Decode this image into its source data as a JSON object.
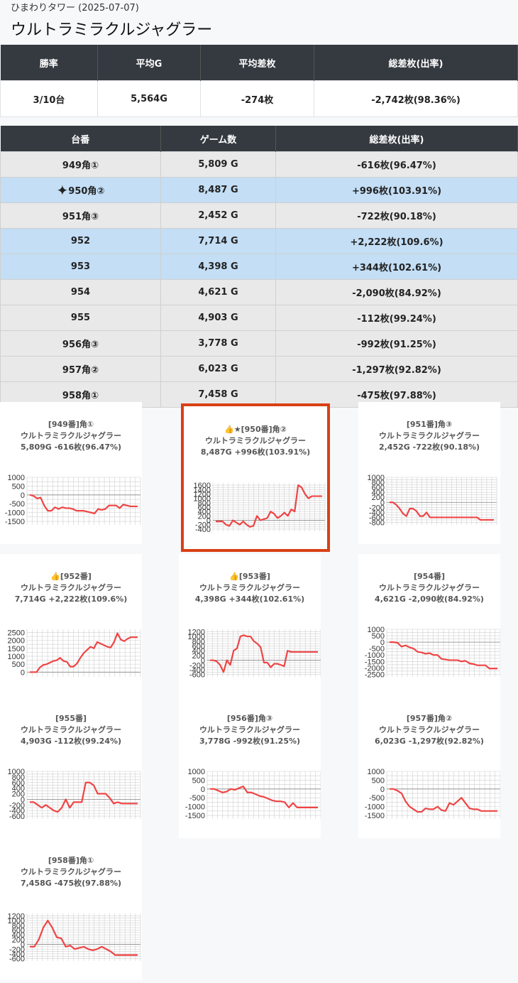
{
  "header": {
    "store": "ひまわりタワー (2025-07-07)",
    "title": "ウルトラミラクルジャグラー"
  },
  "summary": {
    "headers": [
      "勝率",
      "平均G",
      "平均差枚",
      "総差枚(出率)"
    ],
    "values": [
      "3/10台",
      "5,564G",
      "-274枚",
      "-2,742枚(98.36%)"
    ]
  },
  "machines": {
    "headers": [
      "台番",
      "ゲーム数",
      "総差枚(出率)"
    ],
    "rows": [
      {
        "num": "949角①",
        "games": "5,809 G",
        "diff": "-616枚(96.47%)",
        "hl": false,
        "icon": ""
      },
      {
        "num": "950角②",
        "games": "8,487 G",
        "diff": "+996枚(103.91%)",
        "hl": true,
        "icon": "✦"
      },
      {
        "num": "951角③",
        "games": "2,452 G",
        "diff": "-722枚(90.18%)",
        "hl": false,
        "icon": ""
      },
      {
        "num": "952",
        "games": "7,714 G",
        "diff": "+2,222枚(109.6%)",
        "hl": true,
        "icon": ""
      },
      {
        "num": "953",
        "games": "4,398 G",
        "diff": "+344枚(102.61%)",
        "hl": true,
        "icon": ""
      },
      {
        "num": "954",
        "games": "4,621 G",
        "diff": "-2,090枚(84.92%)",
        "hl": false,
        "icon": ""
      },
      {
        "num": "955",
        "games": "4,903 G",
        "diff": "-112枚(99.24%)",
        "hl": false,
        "icon": ""
      },
      {
        "num": "956角③",
        "games": "3,778 G",
        "diff": "-992枚(91.25%)",
        "hl": false,
        "icon": ""
      },
      {
        "num": "957角②",
        "games": "6,023 G",
        "diff": "-1,297枚(92.82%)",
        "hl": false,
        "icon": ""
      },
      {
        "num": "958角①",
        "games": "7,458 G",
        "diff": "-475枚(97.88%)",
        "hl": false,
        "icon": ""
      }
    ]
  },
  "colors": {
    "line": "#ef4444",
    "grid": "#cfcfcf",
    "header_bg": "#343a40",
    "highlight": "#c3def5",
    "selected_border": "#d94015"
  },
  "chart_data": [
    {
      "type": "line",
      "title": [
        "[949番]角①",
        "ウルトラミラクルジャグラー",
        "5,809G -616枚(96.47%)"
      ],
      "ylim": [
        -1700,
        1000
      ],
      "yticks": [
        1000,
        500,
        0,
        -500,
        -1000,
        -1500
      ],
      "grid": true,
      "values": [
        0,
        -50,
        -200,
        -150,
        -600,
        -900,
        -900,
        -700,
        -800,
        -700,
        -750,
        -750,
        -800,
        -900,
        -900,
        -900,
        -950,
        -1000,
        -1050,
        -800,
        -850,
        -800,
        -600,
        -600,
        -600,
        -750,
        -550,
        -600,
        -650,
        -650,
        -650
      ]
    },
    {
      "type": "line",
      "title": [
        "👍★[950番]角②",
        "ウルトラミラクルジャグラー",
        "8,487G +996枚(103.91%)"
      ],
      "ylim": [
        -500,
        1700
      ],
      "yticks": [
        1600,
        1400,
        1200,
        1000,
        800,
        600,
        400,
        200,
        0,
        -200,
        -400
      ],
      "grid": true,
      "values": [
        -50,
        -50,
        -50,
        -200,
        -250,
        0,
        -100,
        -200,
        -50,
        -200,
        -300,
        -250,
        200,
        0,
        50,
        100,
        400,
        300,
        100,
        200,
        350,
        200,
        500,
        400,
        1600,
        1500,
        1200,
        1000,
        1100,
        1100,
        1100,
        1100
      ]
    },
    {
      "type": "line",
      "title": [
        "[951番]角③",
        "ウルトラミラクルジャグラー",
        "2,452G -722枚(90.18%)"
      ],
      "ylim": [
        -900,
        1000
      ],
      "yticks": [
        1000,
        800,
        600,
        400,
        200,
        0,
        -200,
        -400,
        -600,
        -800
      ],
      "grid": true,
      "values": [
        0,
        0,
        -100,
        -250,
        -450,
        -550,
        -250,
        -250,
        -350,
        -550,
        -550,
        -400,
        -600,
        -600,
        -600,
        -600,
        -600,
        -600,
        -600,
        -600,
        -600,
        -600,
        -600,
        -600,
        -600,
        -600,
        -600,
        -700,
        -700,
        -700,
        -700,
        -700
      ]
    },
    {
      "type": "line",
      "title": [
        "👍[952番]",
        "ウルトラミラクルジャグラー",
        "7,714G +2,222枚(109.6%)"
      ],
      "ylim": [
        -300,
        2700
      ],
      "yticks": [
        2500,
        2000,
        1500,
        1000,
        500,
        0
      ],
      "grid": true,
      "values": [
        0,
        0,
        0,
        300,
        450,
        500,
        600,
        700,
        750,
        900,
        700,
        650,
        350,
        350,
        550,
        900,
        1200,
        1400,
        1600,
        1500,
        1900,
        1800,
        1700,
        1600,
        1550,
        1900,
        2450,
        2050,
        1950,
        2100,
        2200,
        2200,
        2200
      ]
    },
    {
      "type": "line",
      "title": [
        "👍[953番]",
        "ウルトラミラクルジャグラー",
        "4,398G +344枚(102.61%)"
      ],
      "ylim": [
        -700,
        1300
      ],
      "yticks": [
        1200,
        1000,
        800,
        600,
        400,
        200,
        0,
        -200,
        -400,
        -600
      ],
      "grid": true,
      "values": [
        0,
        0,
        -50,
        -200,
        -500,
        0,
        -200,
        400,
        500,
        1000,
        1050,
        1000,
        1000,
        800,
        700,
        550,
        -100,
        -100,
        -300,
        -150,
        -150,
        -200,
        -250,
        400,
        350,
        350,
        350,
        350,
        350,
        350,
        350,
        350,
        350
      ]
    },
    {
      "type": "line",
      "title": [
        "[954番]",
        "ウルトラミラクルジャグラー",
        "4,621G -2,090枚(84.92%)"
      ],
      "ylim": [
        -2700,
        1000
      ],
      "yticks": [
        1000,
        500,
        0,
        -500,
        -1000,
        -1500,
        -2000,
        -2500
      ],
      "grid": true,
      "values": [
        0,
        0,
        -50,
        -350,
        -250,
        -400,
        -500,
        -750,
        -800,
        -900,
        -850,
        -1000,
        -1000,
        -1300,
        -1350,
        -1400,
        -1400,
        -1400,
        -1500,
        -1450,
        -1650,
        -1700,
        -1800,
        -1800,
        -1800,
        -2050,
        -2050,
        -2050
      ]
    },
    {
      "type": "line",
      "title": [
        "[955番]",
        "ウルトラミラクルジャグラー",
        "4,903G -112枚(99.24%)"
      ],
      "ylim": [
        -700,
        1000
      ],
      "yticks": [
        1000,
        800,
        600,
        400,
        200,
        0,
        -200,
        -400,
        -600
      ],
      "grid": true,
      "values": [
        -100,
        -100,
        -200,
        -300,
        -200,
        -300,
        -400,
        -450,
        -300,
        0,
        -300,
        -100,
        -100,
        -100,
        600,
        600,
        500,
        200,
        200,
        200,
        50,
        -150,
        -100,
        -150,
        -150,
        -150,
        -150,
        -150
      ]
    },
    {
      "type": "line",
      "title": [
        "[956番]角③",
        "ウルトラミラクルジャグラー",
        "3,778G -992枚(91.25%)"
      ],
      "ylim": [
        -1700,
        1000
      ],
      "yticks": [
        1000,
        500,
        0,
        -500,
        -1000,
        -1500
      ],
      "grid": true,
      "values": [
        0,
        0,
        -100,
        -200,
        -150,
        0,
        -50,
        50,
        150,
        -200,
        -200,
        -300,
        -400,
        -450,
        -550,
        -650,
        -700,
        -700,
        -750,
        -1050,
        -800,
        -1050,
        -1050,
        -1050,
        -1050,
        -1050,
        -1050
      ]
    },
    {
      "type": "line",
      "title": [
        "[957番]角②",
        "ウルトラミラクルジャグラー",
        "6,023G -1,297枚(92.82%)"
      ],
      "ylim": [
        -1700,
        1000
      ],
      "yticks": [
        1000,
        500,
        0,
        -500,
        -1000,
        -1500
      ],
      "grid": true,
      "values": [
        0,
        0,
        -100,
        -250,
        -700,
        -1000,
        -1150,
        -1300,
        -1300,
        -1100,
        -1150,
        -1150,
        -1000,
        -1200,
        -1250,
        -800,
        -900,
        -700,
        -500,
        -800,
        -1100,
        -1150,
        -1150,
        -1250,
        -1250,
        -1250,
        -1250,
        -1250
      ]
    },
    {
      "type": "line",
      "title": [
        "[958番]角①",
        "ウルトラミラクルジャグラー",
        "7,458G -475枚(97.88%)"
      ],
      "ylim": [
        -700,
        1300
      ],
      "yticks": [
        1200,
        1000,
        800,
        600,
        400,
        200,
        0,
        -200,
        -400,
        -600
      ],
      "grid": true,
      "values": [
        -100,
        -100,
        200,
        700,
        1000,
        700,
        300,
        250,
        -100,
        -50,
        -200,
        -150,
        -100,
        -200,
        -250,
        -200,
        -100,
        -200,
        -300,
        -450,
        -450,
        -450,
        -450,
        -450,
        -450
      ]
    }
  ]
}
